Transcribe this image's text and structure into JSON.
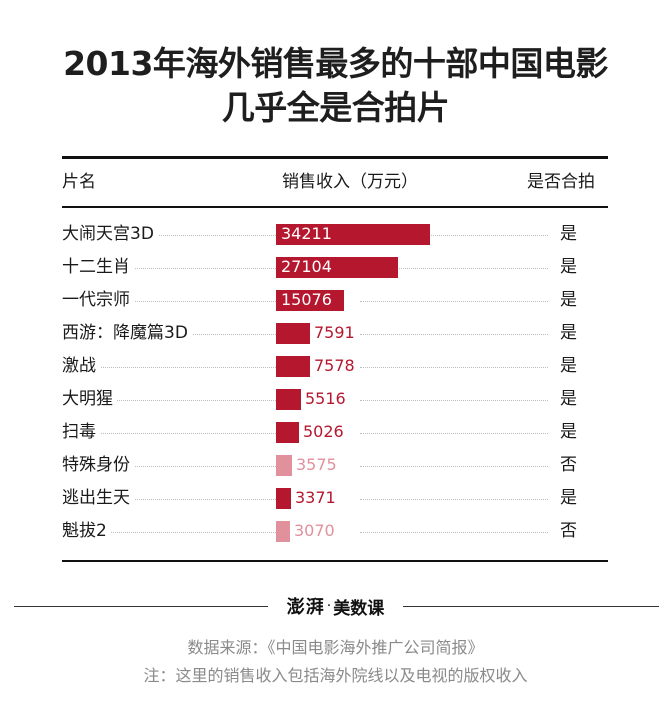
{
  "title": {
    "line1": "2013年海外销售最多的十部中国电影",
    "line2": "几乎全是合拍片"
  },
  "table": {
    "col_name": "片名",
    "col_sales": "销售收入（万元）",
    "col_coprod": "是否合拍"
  },
  "colors": {
    "coproduction": "#b5182e",
    "non_coproduction": "#e0919b"
  },
  "chart_data": {
    "type": "bar",
    "orientation": "horizontal",
    "title": "2013年海外销售最多的十部中国电影几乎全是合拍片",
    "xlabel": "销售收入（万元）",
    "ylabel": "片名",
    "xlim": [
      0,
      34211
    ],
    "categories": [
      "大闹天宫3D",
      "十二生肖",
      "一代宗师",
      "西游：降魔篇3D",
      "激战",
      "大明猩",
      "扫毒",
      "特殊身份",
      "逃出生天",
      "魁拔2"
    ],
    "values": [
      34211,
      27104,
      15076,
      7591,
      7578,
      5516,
      5026,
      3575,
      3371,
      3070
    ],
    "coproduction": [
      "是",
      "是",
      "是",
      "是",
      "是",
      "是",
      "是",
      "否",
      "是",
      "否"
    ]
  },
  "footer": {
    "logo_mark": "澎湃",
    "logo_sep": "·",
    "logo_text": "美数课",
    "source": "数据来源：《中国电影海外推广公司简报》",
    "note": "注：这里的销售收入包括海外院线以及电视的版权收入"
  }
}
